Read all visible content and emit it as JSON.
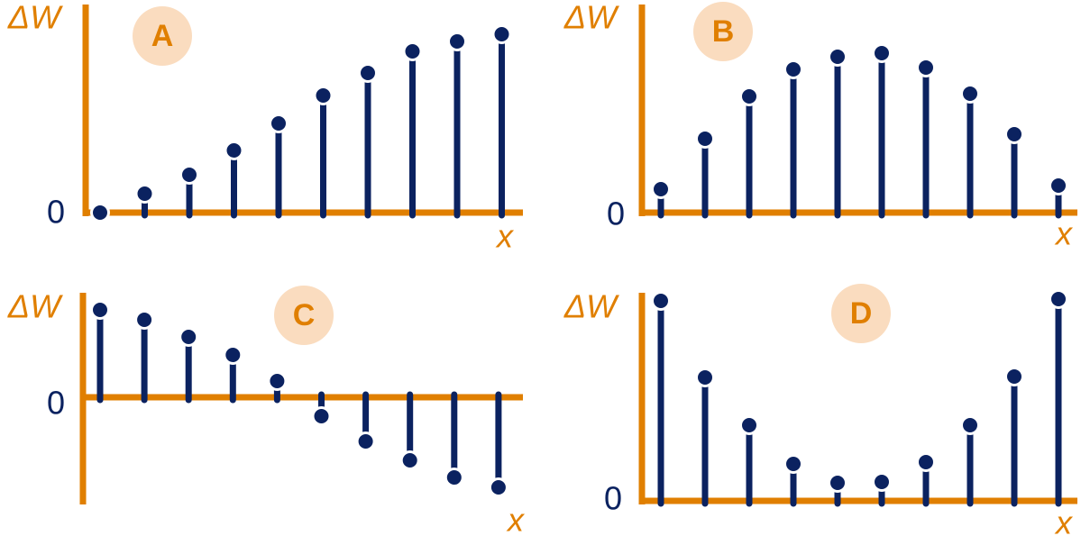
{
  "chart_data": [
    {
      "type": "stem",
      "title": "A",
      "y_label": "ΔW",
      "x_label": "x",
      "color": "#0b2260",
      "axis_color": "#e07f00",
      "values": [
        0,
        21,
        42,
        69,
        99,
        130,
        155,
        179,
        190,
        198
      ],
      "ylim": [
        0,
        231
      ],
      "yticks": [
        0
      ]
    },
    {
      "type": "stem",
      "title": "B",
      "y_label": "ΔW",
      "x_label": "x",
      "color": "#0b2260",
      "axis_color": "#e07f00",
      "values": [
        26,
        82,
        129,
        159,
        173,
        177,
        161,
        132,
        87,
        30
      ],
      "ylim": [
        0,
        231
      ],
      "yticks": [
        0
      ]
    },
    {
      "type": "stem",
      "title": "C",
      "y_label": "ΔW",
      "x_label": "x",
      "color": "#0b2260",
      "axis_color": "#e07f00",
      "values": [
        97,
        86,
        67,
        47,
        18,
        -21,
        -49,
        -70,
        -89,
        -100
      ],
      "ylim": [
        -119,
        116
      ],
      "yticks": [
        0
      ]
    },
    {
      "type": "stem",
      "title": "D",
      "y_label": "ΔW",
      "x_label": "x",
      "color": "#0b2260",
      "axis_color": "#e07f00",
      "values": [
        222,
        137,
        84,
        41,
        20,
        21,
        43,
        84,
        138,
        224
      ],
      "ylim": [
        0,
        231
      ],
      "yticks": [
        0
      ]
    }
  ]
}
